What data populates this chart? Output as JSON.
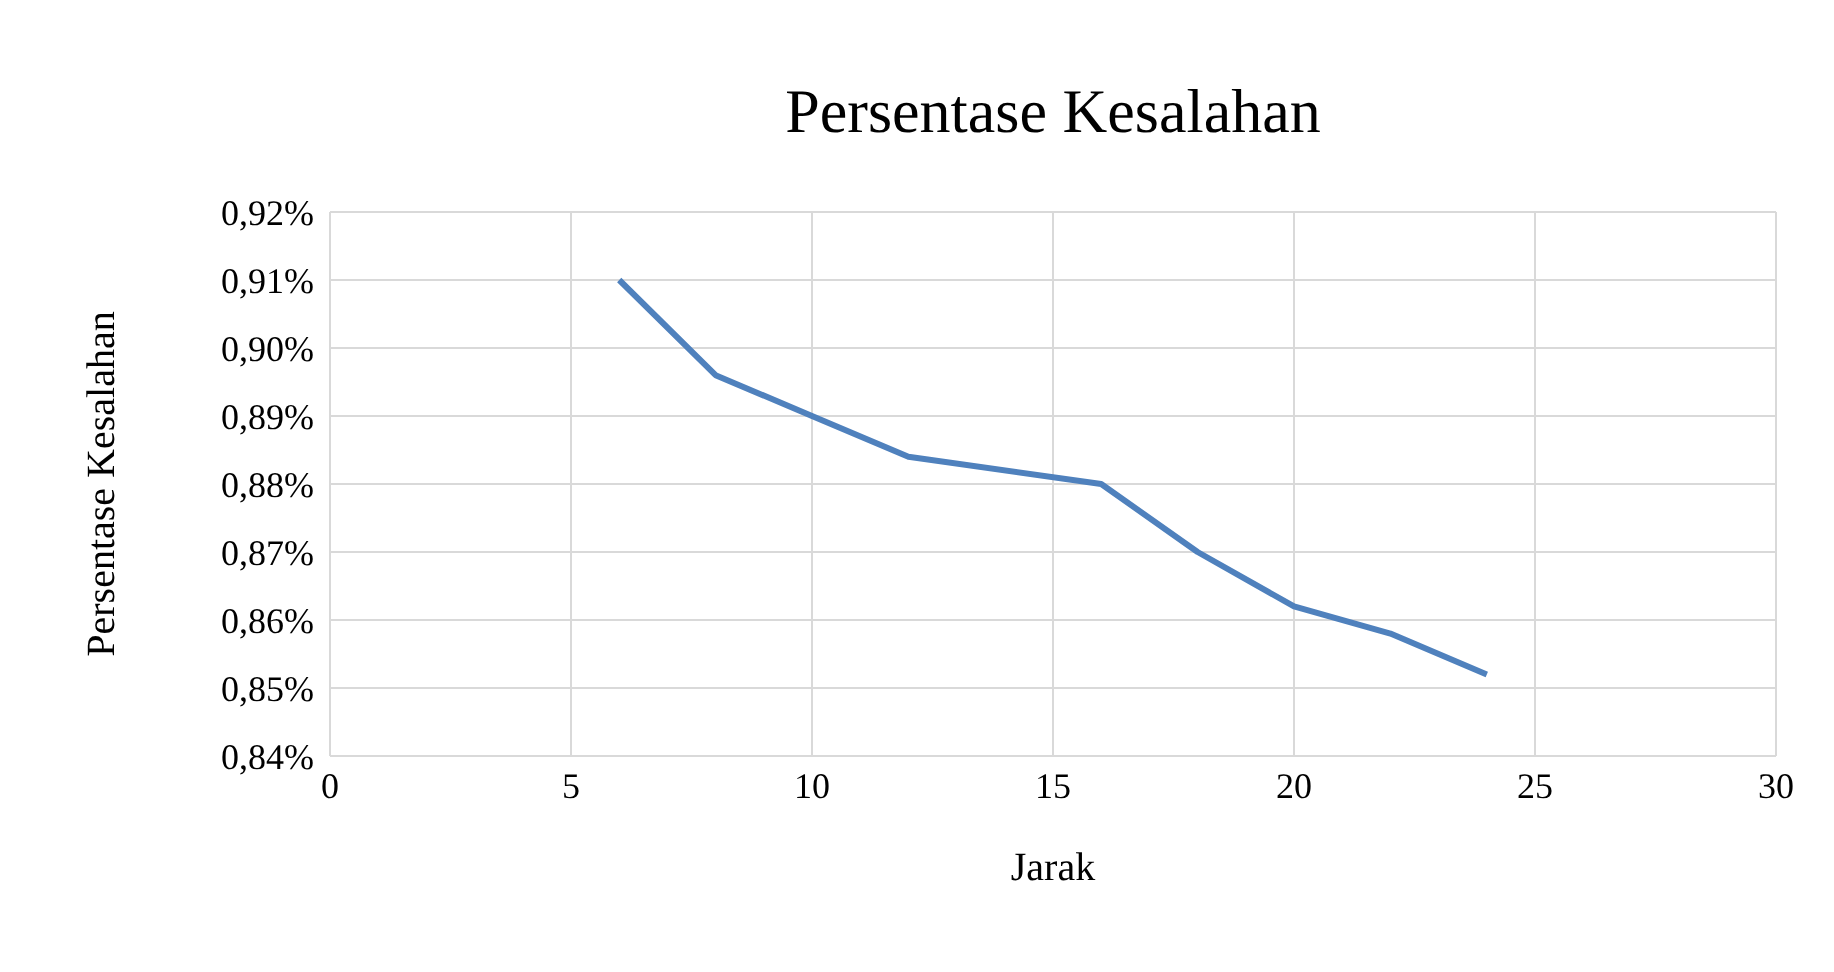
{
  "chart_data": {
    "type": "line",
    "title": "Persentase Kesalahan",
    "xlabel": "Jarak",
    "ylabel": "Persentase Kesalahan",
    "x": [
      6,
      8,
      10,
      12,
      16,
      18,
      20,
      22,
      24
    ],
    "series": [
      {
        "color": "#4f81bd",
        "values": [
          0.91,
          0.896,
          0.89,
          0.884,
          0.88,
          0.87,
          0.862,
          0.858,
          0.852
        ]
      }
    ],
    "xlim": [
      0,
      30
    ],
    "xticks": [
      0,
      5,
      10,
      15,
      20,
      25,
      30
    ],
    "ylim": [
      0.84,
      0.92
    ],
    "yticks": [
      {
        "value": 0.84,
        "label": "0,84%"
      },
      {
        "value": 0.85,
        "label": "0,85%"
      },
      {
        "value": 0.86,
        "label": "0,86%"
      },
      {
        "value": 0.87,
        "label": "0,87%"
      },
      {
        "value": 0.88,
        "label": "0,88%"
      },
      {
        "value": 0.89,
        "label": "0,89%"
      },
      {
        "value": 0.9,
        "label": "0,90%"
      },
      {
        "value": 0.91,
        "label": "0,91%"
      },
      {
        "value": 0.92,
        "label": "0,92%"
      }
    ],
    "grid": true,
    "marker": "none",
    "line_style": "solid"
  }
}
